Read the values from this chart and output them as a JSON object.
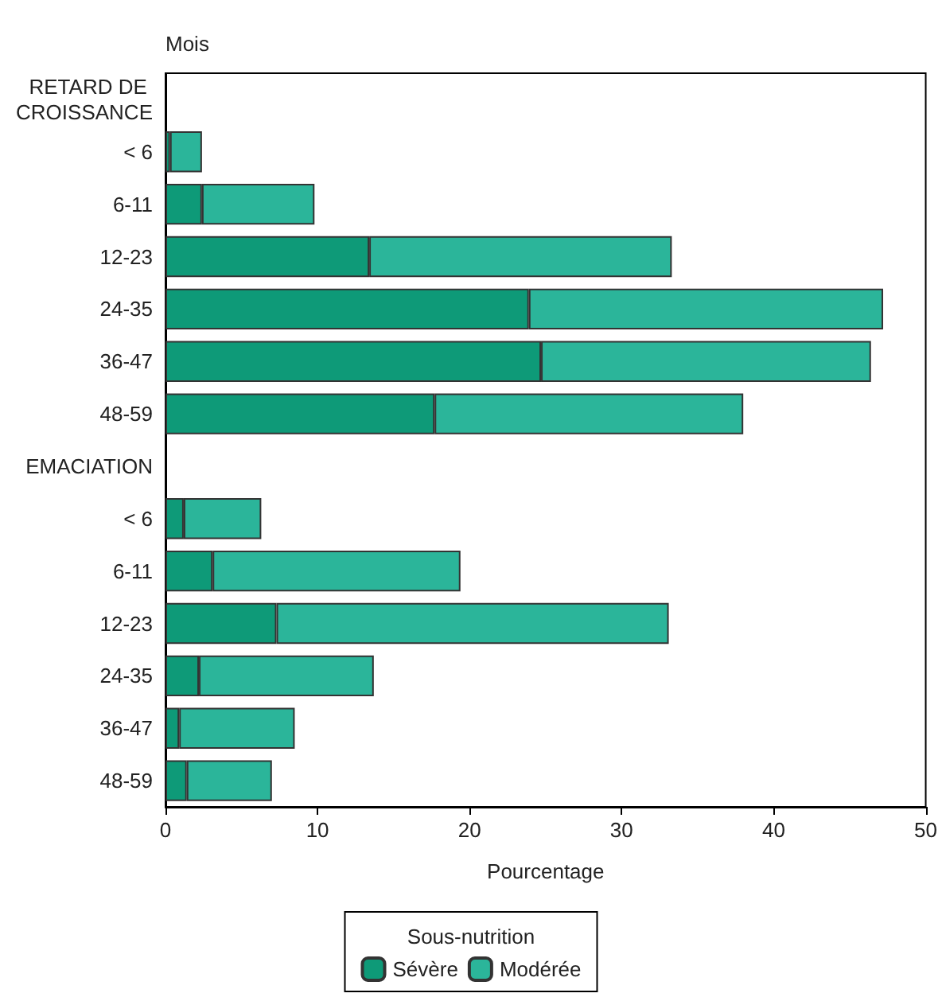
{
  "chart_data": {
    "type": "bar",
    "orientation": "horizontal",
    "stacked": true,
    "ylabel": "Mois",
    "xlabel": "Pourcentage",
    "legend_title": "Sous-nutrition",
    "legend": "bottom",
    "grid": false,
    "categories": [
      "RETARD DE CROISSANCE",
      "< 6",
      "6-11",
      "12-23",
      "24-35",
      "36-47",
      "48-59",
      "EMACIATION",
      "< 6",
      "6-11",
      "12-23",
      "24-35",
      "36-47",
      "48-59"
    ],
    "series": [
      {
        "name": "Sévère",
        "color": "#0e9a78",
        "values": [
          null,
          0.3,
          2.4,
          13.4,
          23.9,
          24.7,
          17.7,
          null,
          1.2,
          3.1,
          7.3,
          2.2,
          0.9,
          1.4
        ]
      },
      {
        "name": "Modérée",
        "color": "#2bb59a",
        "values": [
          null,
          2.1,
          7.4,
          19.9,
          23.3,
          21.7,
          20.3,
          null,
          5.1,
          16.3,
          25.8,
          11.5,
          7.6,
          5.6
        ]
      }
    ],
    "xlim": [
      0,
      50
    ],
    "xticks": [
      0,
      10,
      20,
      30,
      40,
      50
    ]
  }
}
